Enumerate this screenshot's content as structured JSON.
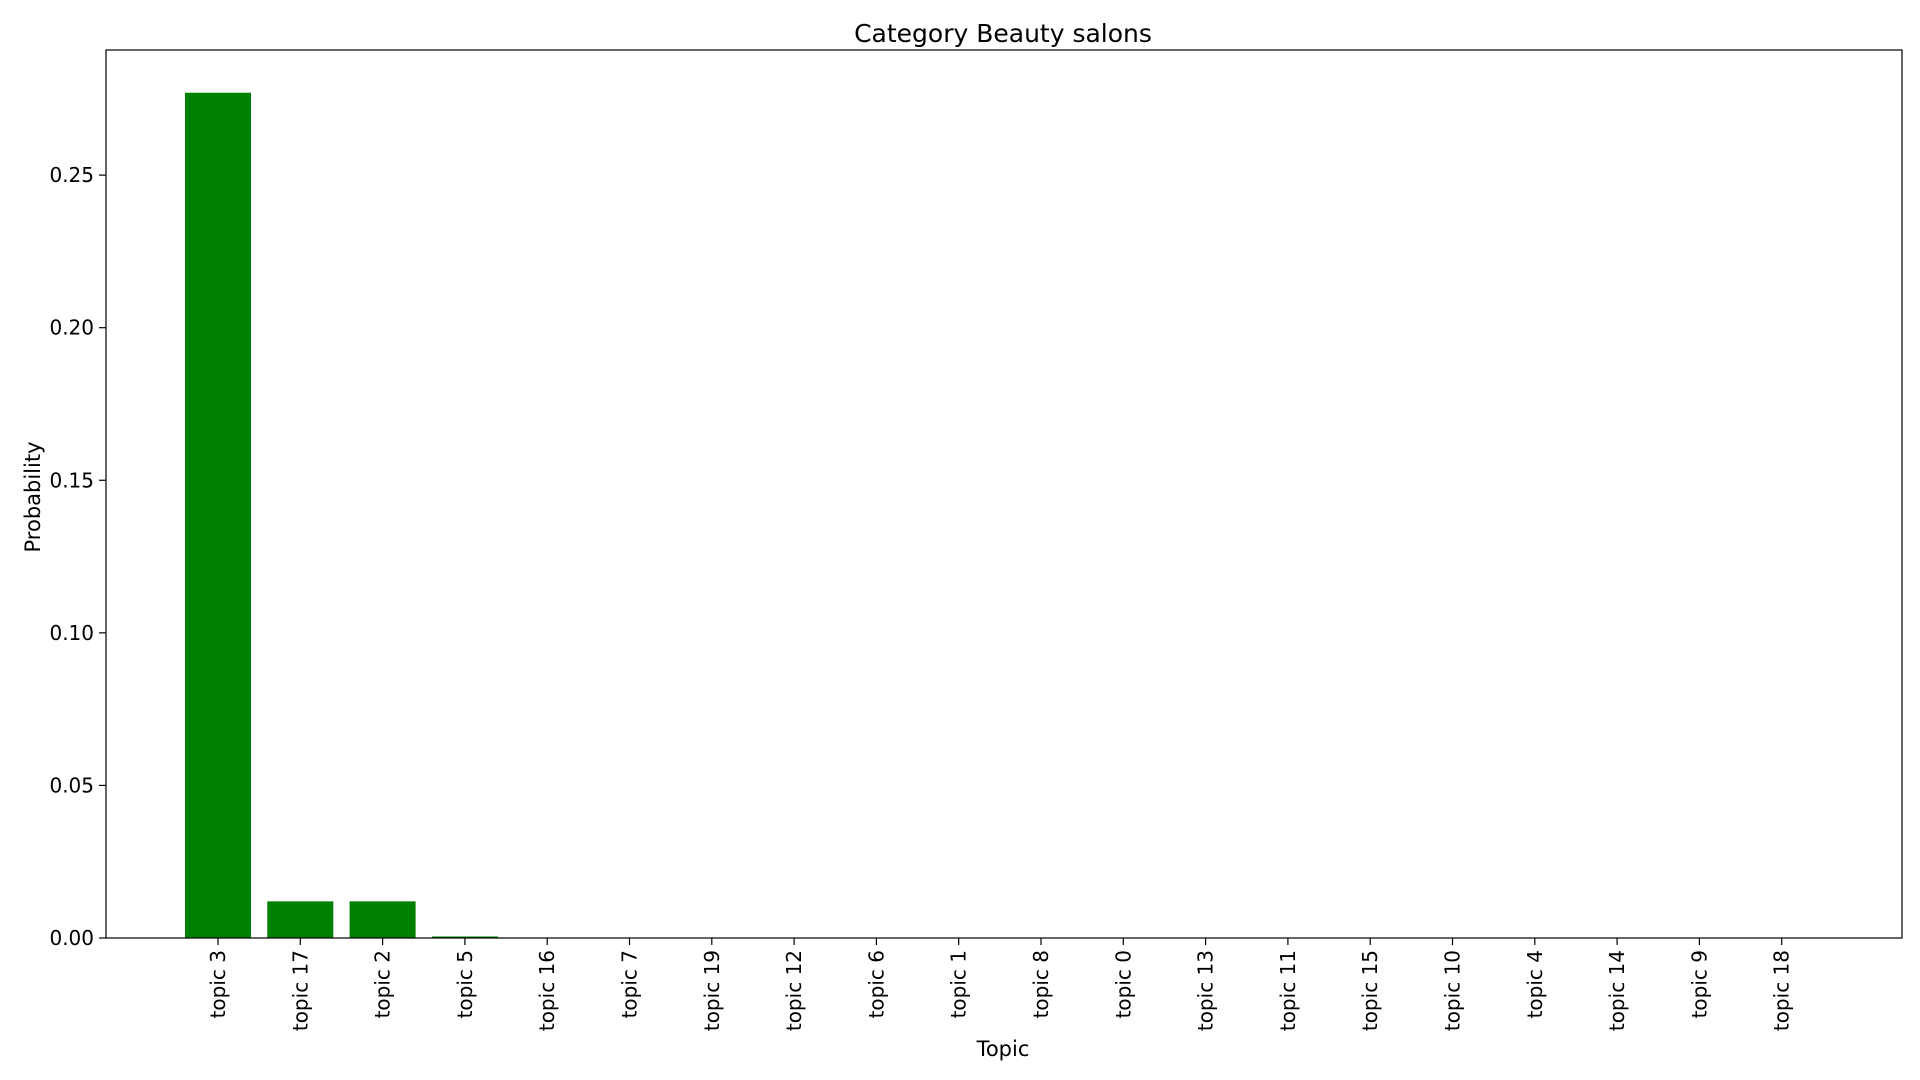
{
  "chart_data": {
    "type": "bar",
    "title": "Category Beauty salons",
    "xlabel": "Topic",
    "ylabel": "Probability",
    "categories": [
      "topic 3",
      "topic 17",
      "topic 2",
      "topic 5",
      "topic 16",
      "topic 7",
      "topic 19",
      "topic 12",
      "topic 6",
      "topic 1",
      "topic 8",
      "topic 0",
      "topic 13",
      "topic 11",
      "topic 15",
      "topic 10",
      "topic 4",
      "topic 14",
      "topic 9",
      "topic 18"
    ],
    "values": [
      0.277,
      0.012,
      0.012,
      0.0005,
      0,
      0,
      0,
      0,
      0,
      0,
      0,
      0,
      0,
      0,
      0,
      0,
      0,
      0,
      0,
      0
    ],
    "ylim": [
      0,
      0.291
    ],
    "yticks": [
      "0.00",
      "0.05",
      "0.10",
      "0.15",
      "0.20",
      "0.25"
    ],
    "bar_color": "#008000",
    "grid": false,
    "legend": "none"
  }
}
